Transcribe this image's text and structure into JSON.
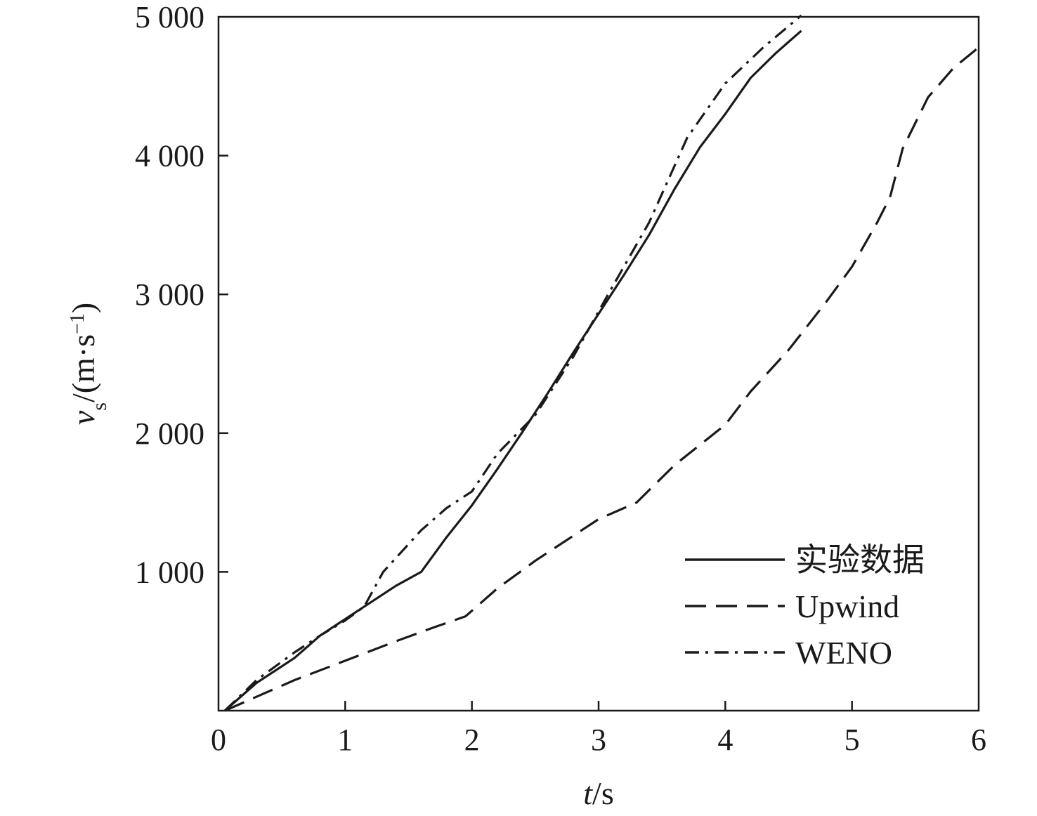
{
  "chart_data": {
    "type": "line",
    "xlabel_italic": "t",
    "xlabel_rest": "/s",
    "ylabel_var": "v",
    "ylabel_sub": "s",
    "ylabel_unit": "/(m·s",
    "ylabel_sup": "−1",
    "ylabel_close": ")",
    "xlim": [
      0,
      6
    ],
    "ylim": [
      0,
      5000
    ],
    "x_ticks": [
      {
        "value": 0,
        "label": "0"
      },
      {
        "value": 1,
        "label": "1"
      },
      {
        "value": 2,
        "label": "2"
      },
      {
        "value": 3,
        "label": "3"
      },
      {
        "value": 4,
        "label": "4"
      },
      {
        "value": 5,
        "label": "5"
      },
      {
        "value": 6,
        "label": "6"
      }
    ],
    "y_ticks": [
      {
        "value": 1000,
        "label": "1 000"
      },
      {
        "value": 2000,
        "label": "2 000"
      },
      {
        "value": 3000,
        "label": "3 000"
      },
      {
        "value": 4000,
        "label": "4 000"
      },
      {
        "value": 5000,
        "label": "5 000"
      }
    ],
    "grid": false,
    "legend_position": "bottom-right",
    "series": [
      {
        "name": "实验数据",
        "style": "solid",
        "color": "#1a1a1a",
        "x": [
          0.05,
          0.3,
          0.6,
          0.8,
          1.0,
          1.2,
          1.4,
          1.6,
          1.8,
          2.0,
          2.2,
          2.4,
          2.6,
          2.8,
          3.0,
          3.2,
          3.4,
          3.6,
          3.8,
          4.0,
          4.2,
          4.4,
          4.6
        ],
        "y": [
          0,
          200,
          380,
          540,
          660,
          780,
          900,
          1000,
          1250,
          1480,
          1740,
          2010,
          2290,
          2580,
          2860,
          3140,
          3430,
          3760,
          4060,
          4300,
          4560,
          4740,
          4900
        ]
      },
      {
        "name": "Upwind",
        "style": "dashed",
        "color": "#1a1a1a",
        "x": [
          0.05,
          0.2,
          0.6,
          1.0,
          1.4,
          1.7,
          1.95,
          2.2,
          2.5,
          2.8,
          3.0,
          3.3,
          3.6,
          4.0,
          4.2,
          4.5,
          4.8,
          5.0,
          5.2,
          5.3,
          5.4,
          5.6,
          5.8,
          6.0
        ],
        "y": [
          0,
          60,
          220,
          360,
          500,
          600,
          680,
          880,
          1080,
          1260,
          1380,
          1500,
          1770,
          2060,
          2300,
          2600,
          2950,
          3200,
          3520,
          3700,
          4050,
          4420,
          4630,
          4780
        ]
      },
      {
        "name": "WENO",
        "style": "dashdot",
        "color": "#1a1a1a",
        "x": [
          0.05,
          0.3,
          0.6,
          0.8,
          1.0,
          1.15,
          1.3,
          1.6,
          1.8,
          2.0,
          2.2,
          2.5,
          2.8,
          3.1,
          3.4,
          3.7,
          4.0,
          4.3,
          4.6
        ],
        "y": [
          0,
          220,
          420,
          540,
          650,
          750,
          1000,
          1300,
          1460,
          1580,
          1850,
          2130,
          2550,
          3040,
          3520,
          4130,
          4520,
          4780,
          5010
        ]
      }
    ]
  }
}
